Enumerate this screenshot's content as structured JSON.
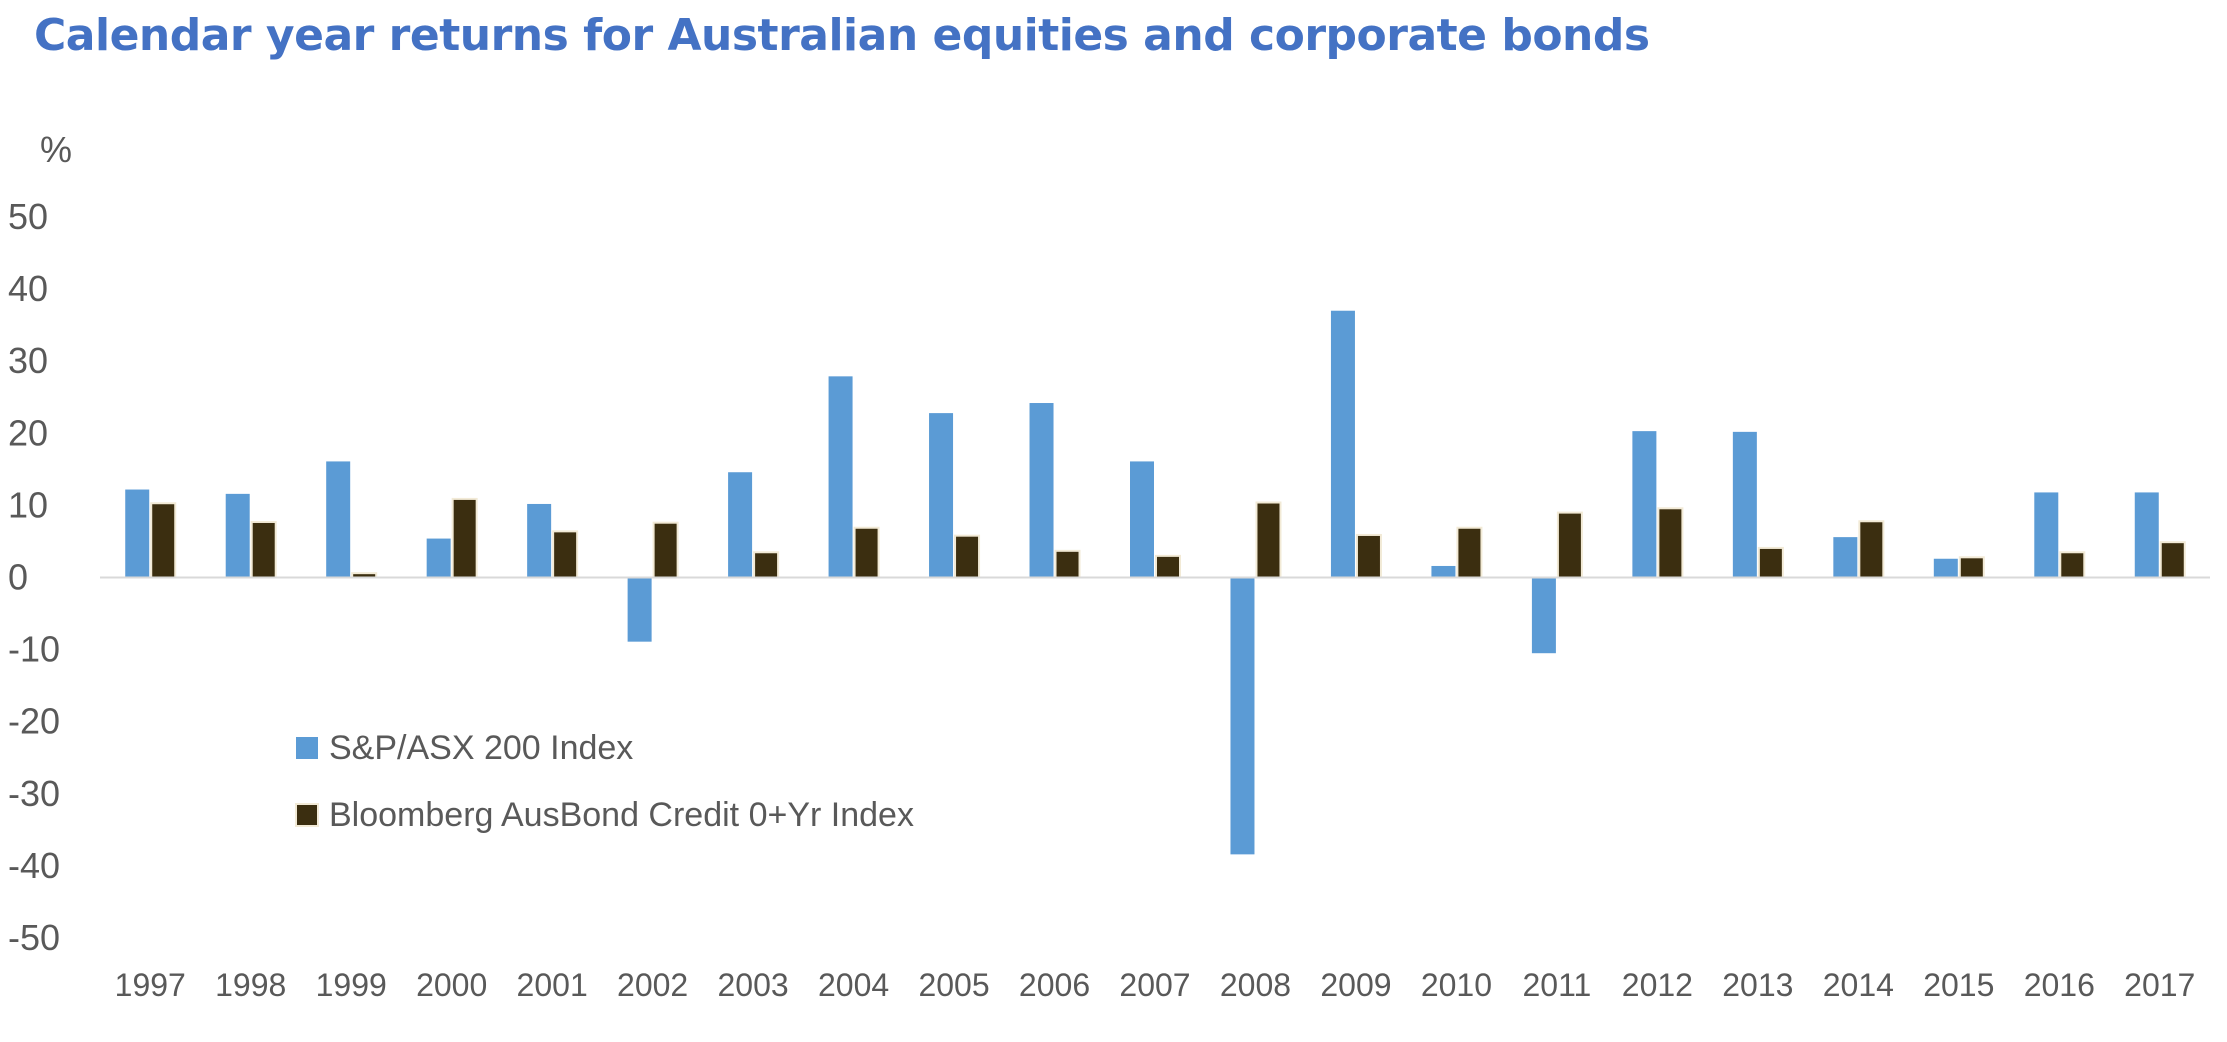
{
  "chart_data": {
    "type": "bar",
    "title": "Calendar year returns for Australian equities and corporate bonds",
    "ylabel": "%",
    "ylim": [
      -50,
      50
    ],
    "yticks": [
      50,
      40,
      30,
      20,
      10,
      0,
      -10,
      -20,
      -30,
      -40,
      -50
    ],
    "categories": [
      "1997",
      "1998",
      "1999",
      "2000",
      "2001",
      "2002",
      "2003",
      "2004",
      "2005",
      "2006",
      "2007",
      "2008",
      "2009",
      "2010",
      "2011",
      "2012",
      "2013",
      "2014",
      "2015",
      "2016",
      "2017"
    ],
    "series": [
      {
        "name": "S&P/ASX 200 Index",
        "color": "#5b9bd5",
        "values": [
          12.2,
          11.6,
          16.1,
          5.4,
          10.2,
          -8.9,
          14.6,
          27.9,
          22.8,
          24.2,
          16.1,
          -38.4,
          37.0,
          1.6,
          -10.5,
          20.3,
          20.2,
          5.6,
          2.6,
          11.8,
          11.8
        ]
      },
      {
        "name": "Bloomberg AusBond Credit 0+Yr Index",
        "color": "#3b2e10",
        "values": [
          10.3,
          7.7,
          0.6,
          10.9,
          6.4,
          7.6,
          3.5,
          6.9,
          5.8,
          3.7,
          3.0,
          10.4,
          5.9,
          6.9,
          9.0,
          9.6,
          4.1,
          7.8,
          2.8,
          3.5,
          4.9
        ]
      }
    ],
    "legend_position": "lower-left",
    "grid": false
  }
}
